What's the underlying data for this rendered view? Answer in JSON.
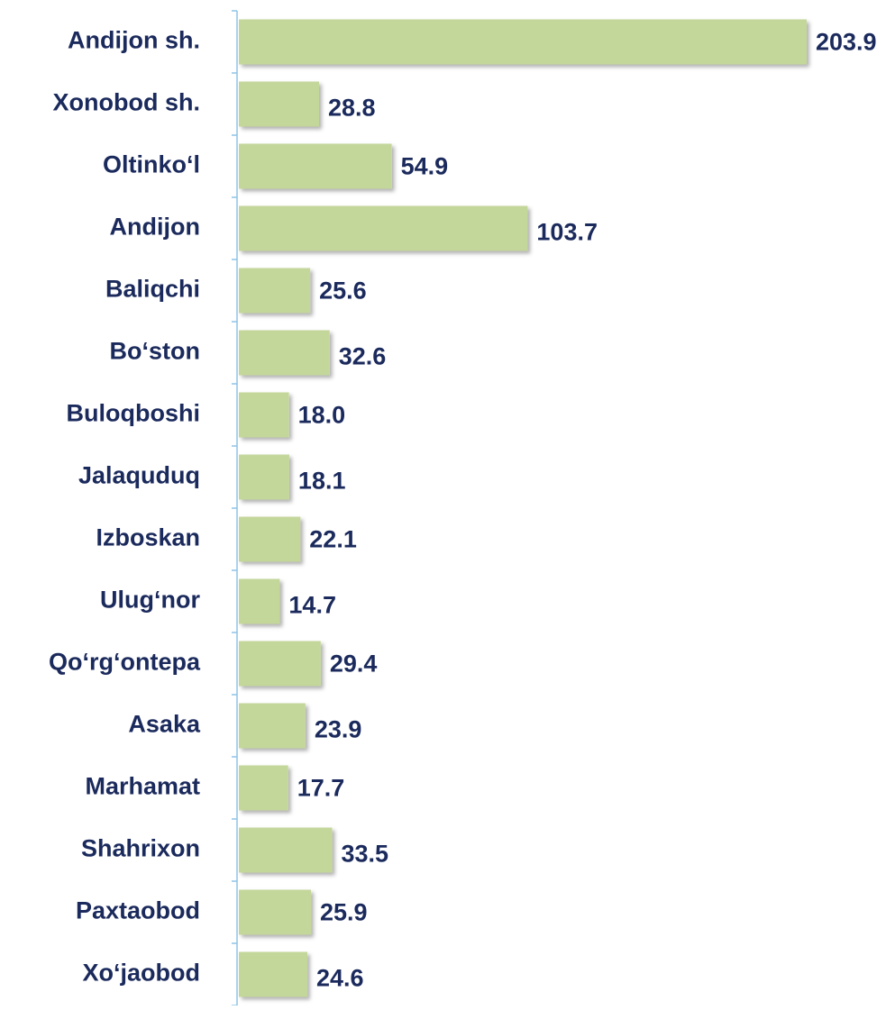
{
  "chart_data": {
    "type": "bar",
    "orientation": "horizontal",
    "categories": [
      "Andijon sh.",
      "Xonobod sh.",
      "Oltinko‘l",
      "Andijon",
      "Baliqchi",
      "Bo‘ston",
      "Buloqboshi",
      "Jalaquduq",
      "Izboskan",
      "Ulug‘nor",
      "Qo‘rg‘ontepa",
      "Asaka",
      "Marhamat",
      "Shahrixon",
      "Paxtaobod",
      "Xo‘jaobod"
    ],
    "values": [
      203.9,
      28.8,
      54.9,
      103.7,
      25.6,
      32.6,
      18.0,
      18.1,
      22.1,
      14.7,
      29.4,
      23.9,
      17.7,
      33.5,
      25.9,
      24.6
    ],
    "value_labels": [
      "203.9",
      "28.8",
      "54.9",
      "103.7",
      "25.6",
      "32.6",
      "18.0",
      "18.1",
      "22.1",
      "14.7",
      "29.4",
      "23.9",
      "17.7",
      "33.5",
      "25.9",
      "24.6"
    ],
    "color": "#c4d79b"
  }
}
